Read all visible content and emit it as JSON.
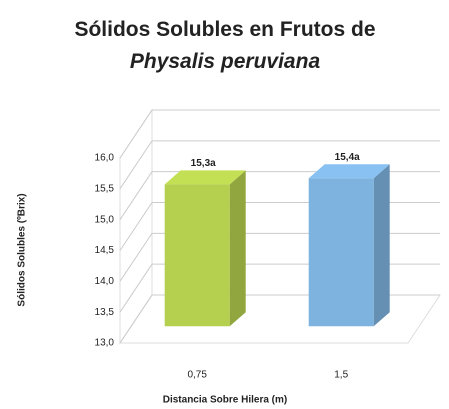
{
  "chart_data": {
    "type": "bar3d",
    "title": "Sólidos Solubles en Frutos de",
    "title_italic": "Physalis peruviana",
    "y_label": "Sólidos Solubles (ºBrix)",
    "x_label": "Distancia Sobre Hilera (m)",
    "categories": [
      "0,75",
      "1,5"
    ],
    "values": [
      15.3,
      15.4
    ],
    "value_labels": [
      "15,3a",
      "15,4a"
    ],
    "colors": [
      "#b5cf4f",
      "#7eb3e0"
    ],
    "ylim": [
      13,
      16
    ],
    "yticks": [
      {
        "value": 13,
        "label": "13,0"
      },
      {
        "value": 13.5,
        "label": "13,5"
      },
      {
        "value": 14,
        "label": "14,0"
      },
      {
        "value": 14.5,
        "label": "14,5"
      },
      {
        "value": 15,
        "label": "15,0"
      },
      {
        "value": 15.5,
        "label": "15,5"
      },
      {
        "value": 16,
        "label": "16,0"
      }
    ],
    "grid": true
  }
}
